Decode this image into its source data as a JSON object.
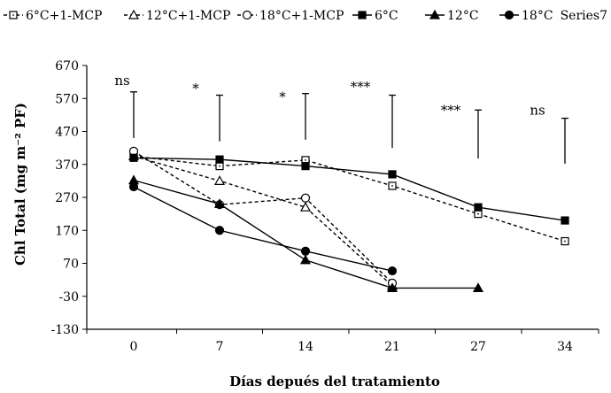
{
  "chart_data": {
    "type": "line",
    "title": "",
    "xlabel": "Días depués del tratamiento",
    "ylabel": "Chl Total (mg m⁻² PF)",
    "ylim": [
      -130,
      670
    ],
    "yticks": [
      -130,
      -30,
      70,
      170,
      270,
      370,
      470,
      570,
      670
    ],
    "categories": [
      "0",
      "7",
      "14",
      "21",
      "27",
      "34"
    ],
    "grid": false,
    "legend_position": "top",
    "series": [
      {
        "name": "6°C+1-MCP",
        "marker": "square-open",
        "dash": true,
        "values": [
          395,
          365,
          383,
          305,
          220,
          137
        ]
      },
      {
        "name": "12°C+1-MCP",
        "marker": "triangle-open",
        "dash": true,
        "values": [
          395,
          320,
          240,
          2,
          null,
          null
        ]
      },
      {
        "name": "18°C+1-MCP",
        "marker": "circle-open",
        "dash": true,
        "values": [
          410,
          248,
          268,
          10,
          null,
          null
        ]
      },
      {
        "name": "6°C",
        "marker": "square-filled",
        "dash": false,
        "values": [
          390,
          385,
          365,
          340,
          240,
          200
        ]
      },
      {
        "name": "12°C",
        "marker": "triangle-filled",
        "dash": false,
        "values": [
          322,
          250,
          80,
          -5,
          -5,
          null
        ]
      },
      {
        "name": "18°C",
        "marker": "circle-filled",
        "dash": false,
        "values": [
          302,
          170,
          107,
          47,
          null,
          null
        ]
      },
      {
        "name": "Series7",
        "marker": "none",
        "dash": false,
        "values": [
          null,
          null,
          null,
          null,
          null,
          null
        ]
      }
    ],
    "error_bars": [
      {
        "category": "0",
        "low": 450,
        "high": 590
      },
      {
        "category": "7",
        "low": 440,
        "high": 580
      },
      {
        "category": "14",
        "low": 445,
        "high": 585
      },
      {
        "category": "21",
        "low": 420,
        "high": 580
      },
      {
        "category": "27",
        "low": 388,
        "high": 535
      },
      {
        "category": "34",
        "low": 372,
        "high": 510
      }
    ],
    "annotations": [
      {
        "text": "ns",
        "category": "0",
        "y": 625
      },
      {
        "text": "*",
        "category": "7",
        "y": 600
      },
      {
        "text": "*",
        "category": "14",
        "y": 575
      },
      {
        "text": "***",
        "category": "21",
        "y": 605
      },
      {
        "text": "***",
        "category": "27",
        "y": 535
      },
      {
        "text": "ns",
        "category": "34",
        "y": 535
      }
    ]
  }
}
